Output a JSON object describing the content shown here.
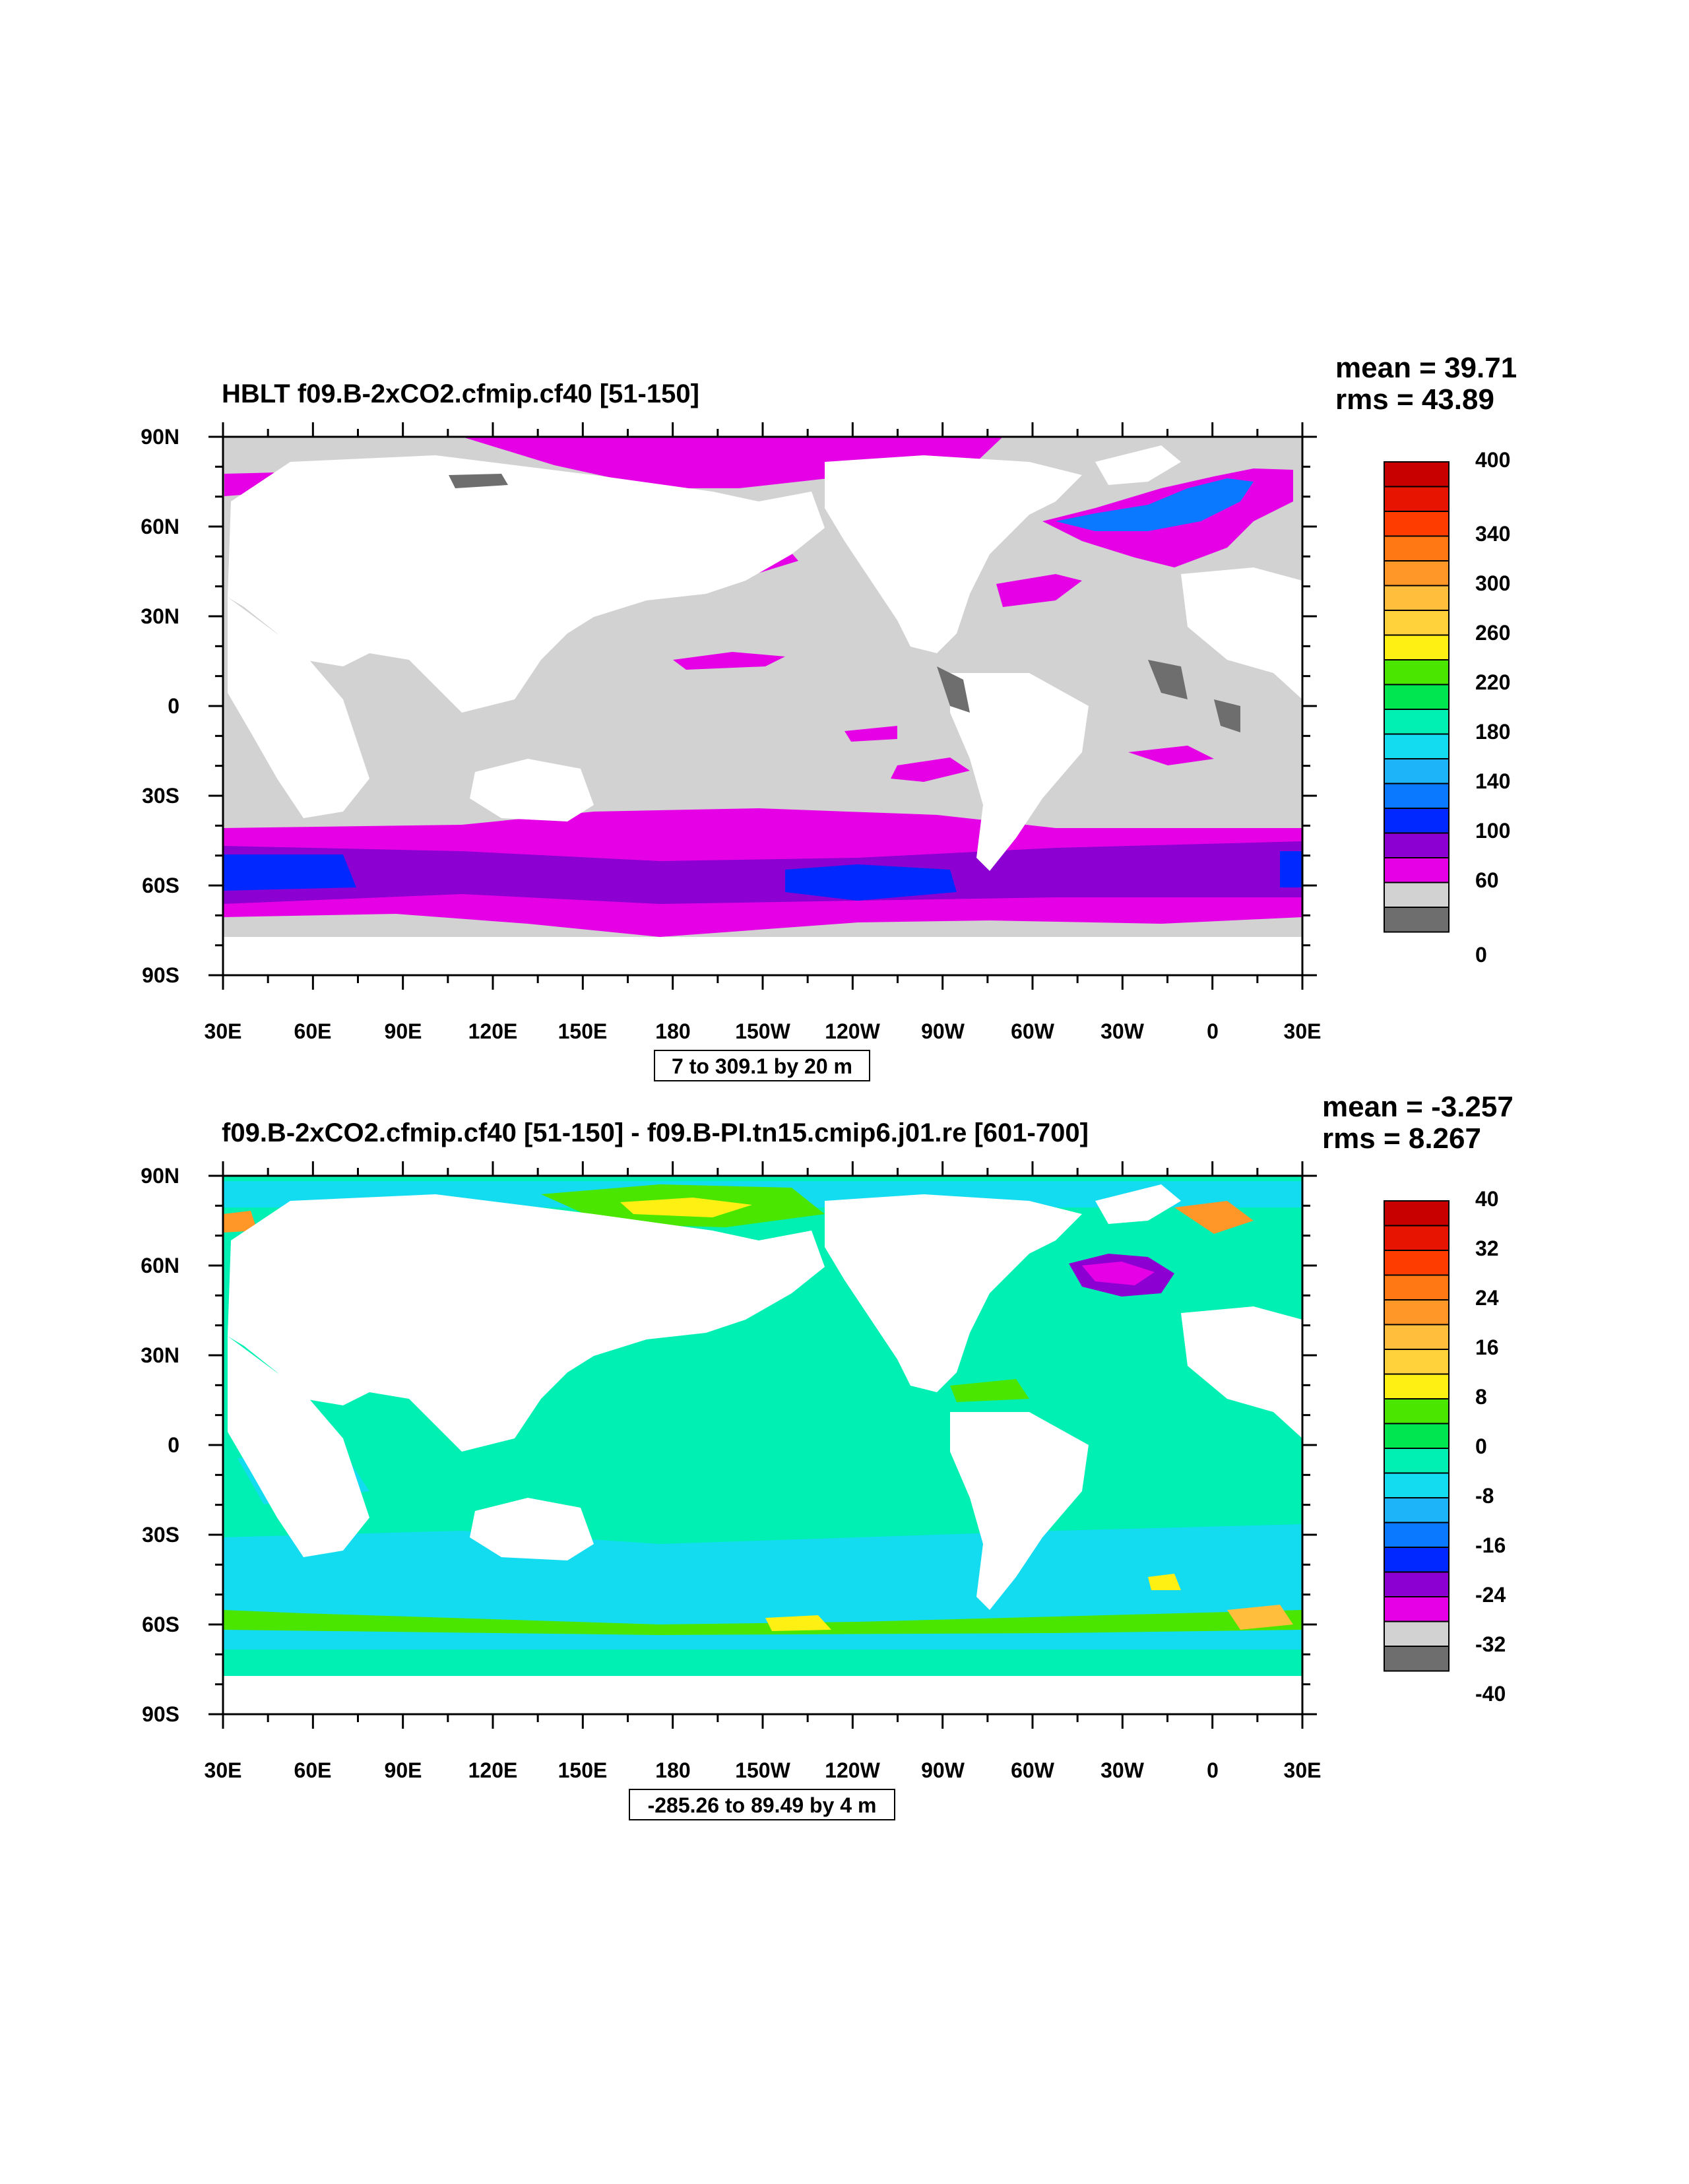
{
  "panels": [
    {
      "title": "HBLT f09.B-2xCO2.cfmip.cf40 [51-150]",
      "mean": "mean = 39.71",
      "rms": "rms = 43.89",
      "info": "7 to 309.1 by 20 m",
      "lat_labels": [
        "90N",
        "60N",
        "30N",
        "0",
        "30S",
        "60S",
        "90S"
      ],
      "lon_labels": [
        "30E",
        "60E",
        "90E",
        "120E",
        "150E",
        "180",
        "150W",
        "120W",
        "90W",
        "60W",
        "30W",
        "0",
        "30E"
      ],
      "colorbar_labels": [
        "400",
        "340",
        "300",
        "260",
        "220",
        "180",
        "140",
        "100",
        "60",
        "0"
      ],
      "colorbar_colors": [
        "#c80000",
        "#e61400",
        "#ff3c00",
        "#ff7814",
        "#ff9628",
        "#ffbe3c",
        "#ffd23c",
        "#fff014",
        "#4be600",
        "#00e650",
        "#00f0b4",
        "#14dcf0",
        "#1eb4fa",
        "#0a78ff",
        "#0028ff",
        "#8c00d2",
        "#e600e6",
        "#d2d2d2",
        "#6e6e6e"
      ],
      "fill_colors": {
        "ocean": "#d2d2d2",
        "land": "#ffffff",
        "coast": "#6e6e6e",
        "high": "#e600e6",
        "higher": "#8c00d2",
        "highest": "#0028ff"
      }
    },
    {
      "title": "f09.B-2xCO2.cfmip.cf40 [51-150] - f09.B-PI.tn15.cmip6.j01.re [601-700]",
      "mean": "mean = -3.257",
      "rms": "rms = 8.267",
      "info": "-285.26 to 89.49 by 4 m",
      "lat_labels": [
        "90N",
        "60N",
        "30N",
        "0",
        "30S",
        "60S",
        "90S"
      ],
      "lon_labels": [
        "30E",
        "60E",
        "90E",
        "120E",
        "150E",
        "180",
        "150W",
        "120W",
        "90W",
        "60W",
        "30W",
        "0",
        "30E"
      ],
      "colorbar_labels": [
        "40",
        "32",
        "24",
        "16",
        "8",
        "0",
        "-8",
        "-16",
        "-24",
        "-32",
        "-40"
      ],
      "colorbar_colors": [
        "#c80000",
        "#e61400",
        "#ff3c00",
        "#ff7814",
        "#ff9628",
        "#ffbe3c",
        "#ffd23c",
        "#fff014",
        "#4be600",
        "#00e650",
        "#00f0b4",
        "#14dcf0",
        "#1eb4fa",
        "#0a78ff",
        "#0028ff",
        "#8c00d2",
        "#e600e6",
        "#d2d2d2",
        "#6e6e6e"
      ],
      "fill_colors": {
        "ocean": "#00f0b4",
        "land": "#ffffff",
        "cool": "#14dcf0",
        "warm": "#4be600",
        "hot": "#fff014",
        "neg": "#e600e6"
      }
    }
  ]
}
